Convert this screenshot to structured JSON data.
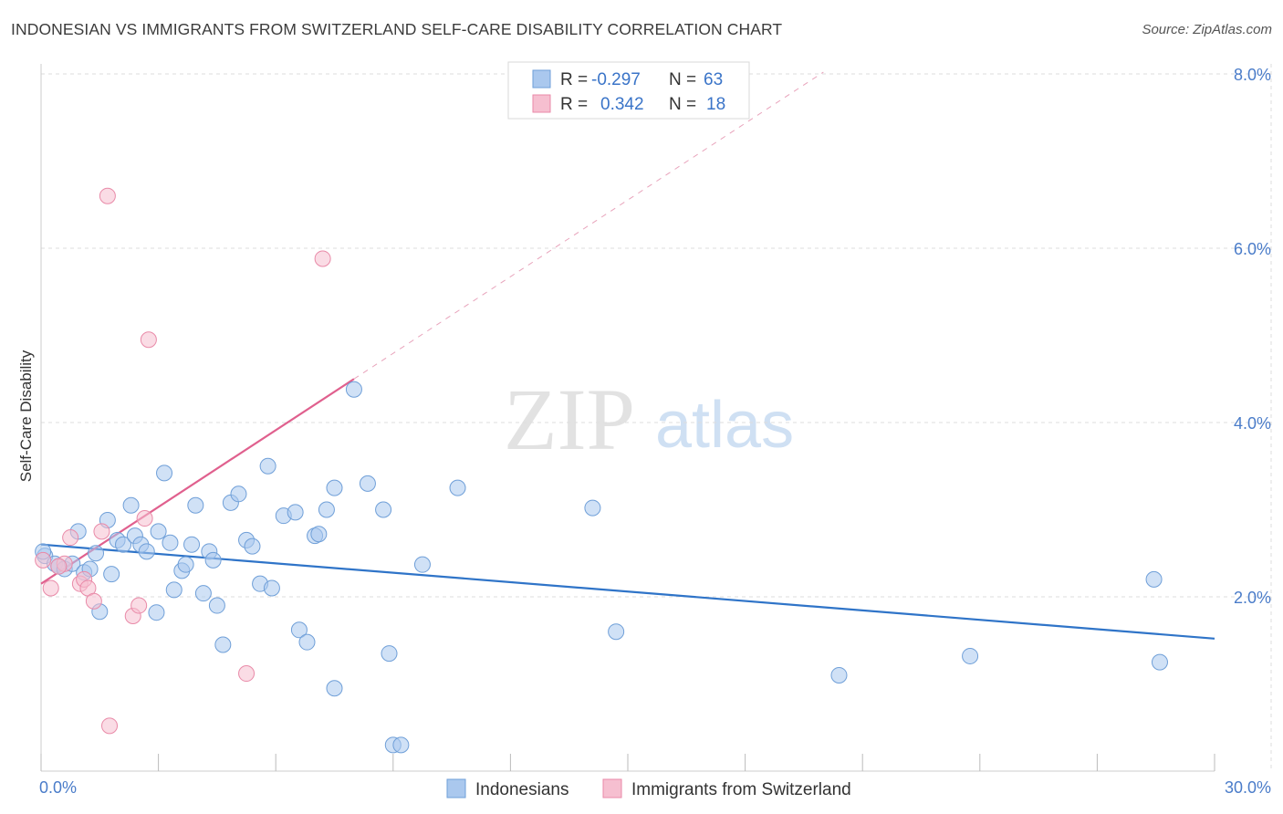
{
  "title": "INDONESIAN VS IMMIGRANTS FROM SWITZERLAND SELF-CARE DISABILITY CORRELATION CHART",
  "source": "Source: ZipAtlas.com",
  "watermark": {
    "zip": "ZIP",
    "atlas": "atlas"
  },
  "colors": {
    "blue_fill": "#aac8ee",
    "blue_stroke": "#6f9fd8",
    "blue_line": "#2f74c8",
    "pink_fill": "#f6bfd0",
    "pink_stroke": "#e98aa8",
    "pink_line": "#e0608e",
    "grid": "#dddddd",
    "axis_text": "#4a7cc9"
  },
  "legend": {
    "rows": [
      {
        "r_label": "R =",
        "r_value": "-0.297",
        "n_label": "N =",
        "n_value": "63"
      },
      {
        "r_label": "R =",
        "r_value": "0.342",
        "n_label": "N =",
        "n_value": "18"
      }
    ]
  },
  "bottom_legend": [
    "Indonesians",
    "Immigrants from Switzerland"
  ],
  "chart_data": {
    "type": "scatter",
    "title": "INDONESIAN VS IMMIGRANTS FROM SWITZERLAND SELF-CARE DISABILITY CORRELATION CHART",
    "xlabel": "",
    "ylabel": "Self-Care Disability",
    "xlim": [
      0,
      30
    ],
    "ylim": [
      0,
      8
    ],
    "x_tick_labels": [
      "0.0%",
      "30.0%"
    ],
    "y_ticks": [
      2,
      4,
      6,
      8
    ],
    "y_tick_labels": [
      "2.0%",
      "4.0%",
      "6.0%",
      "8.0%"
    ],
    "grid": true,
    "legend_position": "top-center",
    "series": [
      {
        "name": "Indonesians",
        "R": -0.297,
        "N": 63,
        "trend": {
          "x": [
            0,
            30
          ],
          "y": [
            2.6,
            1.52
          ],
          "style": "solid"
        },
        "points": [
          [
            0.1,
            2.47
          ],
          [
            0.35,
            2.38
          ],
          [
            0.45,
            2.35
          ],
          [
            0.6,
            2.32
          ],
          [
            0.8,
            2.38
          ],
          [
            0.95,
            2.75
          ],
          [
            1.1,
            2.28
          ],
          [
            1.25,
            2.32
          ],
          [
            1.4,
            2.5
          ],
          [
            1.5,
            1.83
          ],
          [
            1.7,
            2.88
          ],
          [
            1.8,
            2.26
          ],
          [
            1.95,
            2.65
          ],
          [
            2.1,
            2.6
          ],
          [
            2.3,
            3.05
          ],
          [
            2.4,
            2.7
          ],
          [
            2.55,
            2.6
          ],
          [
            2.7,
            2.52
          ],
          [
            2.95,
            1.82
          ],
          [
            3.0,
            2.75
          ],
          [
            3.15,
            3.42
          ],
          [
            3.3,
            2.62
          ],
          [
            3.4,
            2.08
          ],
          [
            3.6,
            2.3
          ],
          [
            3.7,
            2.37
          ],
          [
            3.85,
            2.6
          ],
          [
            3.95,
            3.05
          ],
          [
            4.15,
            2.04
          ],
          [
            4.3,
            2.52
          ],
          [
            4.4,
            2.42
          ],
          [
            4.5,
            1.9
          ],
          [
            4.65,
            1.45
          ],
          [
            4.85,
            3.08
          ],
          [
            5.05,
            3.18
          ],
          [
            5.25,
            2.65
          ],
          [
            5.4,
            2.58
          ],
          [
            5.6,
            2.15
          ],
          [
            5.8,
            3.5
          ],
          [
            5.9,
            2.1
          ],
          [
            6.2,
            2.93
          ],
          [
            6.5,
            2.97
          ],
          [
            6.6,
            1.62
          ],
          [
            6.8,
            1.48
          ],
          [
            7.0,
            2.7
          ],
          [
            7.1,
            2.72
          ],
          [
            7.3,
            3.0
          ],
          [
            7.5,
            3.25
          ],
          [
            7.5,
            0.95
          ],
          [
            8.0,
            4.38
          ],
          [
            8.35,
            3.3
          ],
          [
            8.75,
            3.0
          ],
          [
            8.9,
            1.35
          ],
          [
            9.0,
            0.3
          ],
          [
            9.2,
            0.3
          ],
          [
            9.75,
            2.37
          ],
          [
            10.65,
            3.25
          ],
          [
            14.1,
            3.02
          ],
          [
            14.7,
            1.6
          ],
          [
            20.4,
            1.1
          ],
          [
            23.75,
            1.32
          ],
          [
            28.45,
            2.2
          ],
          [
            28.6,
            1.25
          ],
          [
            0.05,
            2.52
          ]
        ]
      },
      {
        "name": "Immigrants from Switzerland",
        "R": 0.342,
        "N": 18,
        "trend": {
          "x": [
            0,
            8.0
          ],
          "y": [
            2.15,
            4.5
          ],
          "style": "solid",
          "extended_x": [
            8.0,
            20.0
          ],
          "extended_y": [
            4.5,
            8.02
          ]
        },
        "points": [
          [
            0.05,
            2.42
          ],
          [
            0.25,
            2.1
          ],
          [
            0.6,
            2.38
          ],
          [
            0.75,
            2.68
          ],
          [
            1.0,
            2.15
          ],
          [
            1.1,
            2.2
          ],
          [
            1.2,
            2.1
          ],
          [
            1.35,
            1.95
          ],
          [
            1.55,
            2.75
          ],
          [
            1.7,
            6.6
          ],
          [
            1.75,
            0.52
          ],
          [
            2.35,
            1.78
          ],
          [
            2.5,
            1.9
          ],
          [
            2.65,
            2.9
          ],
          [
            2.75,
            4.95
          ],
          [
            5.25,
            1.12
          ],
          [
            7.2,
            5.88
          ],
          [
            0.45,
            2.35
          ]
        ]
      }
    ]
  }
}
